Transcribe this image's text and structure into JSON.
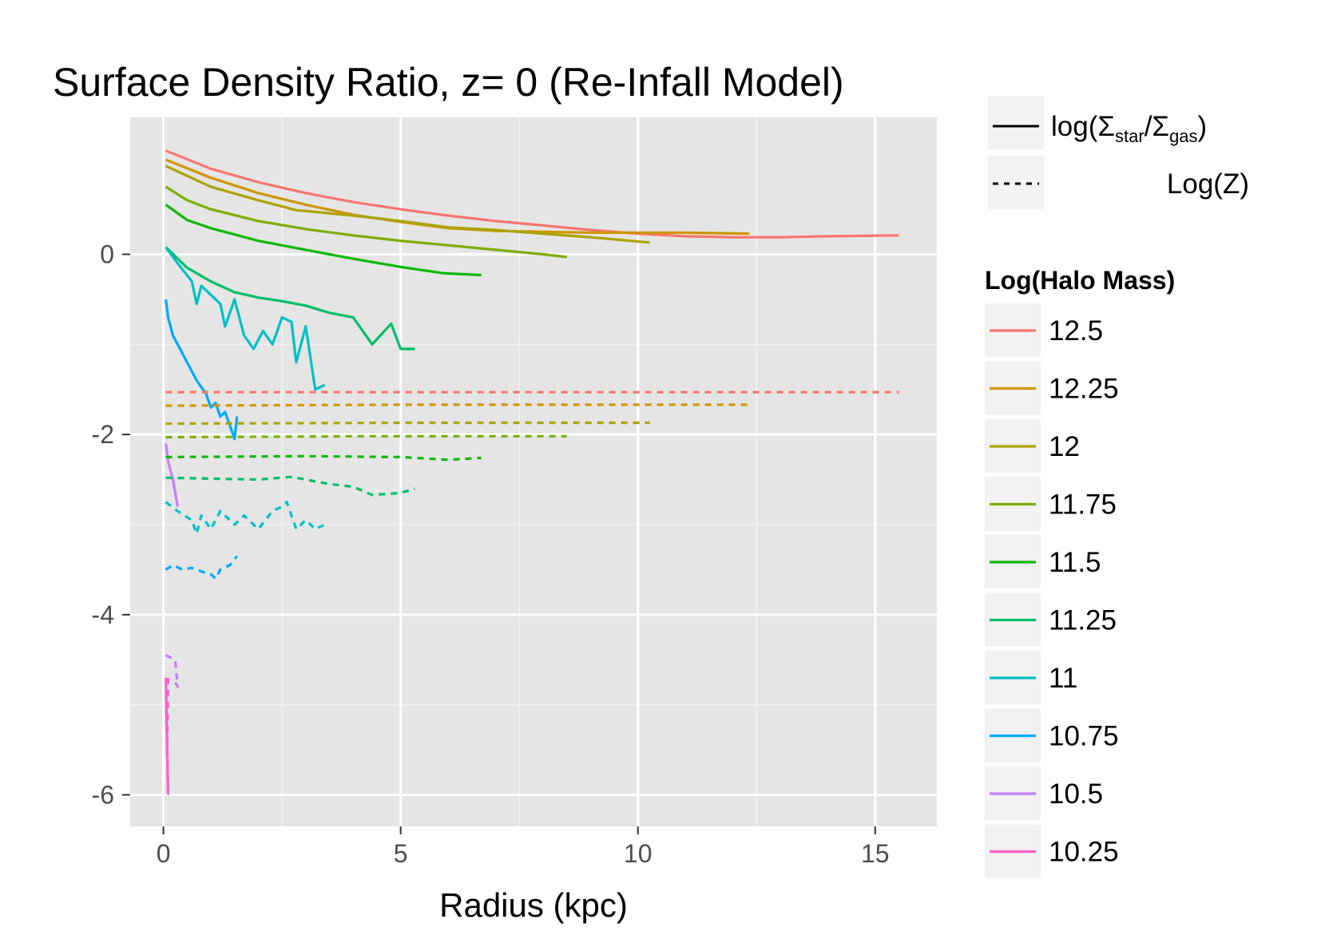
{
  "chart_data": {
    "type": "line",
    "title": "Surface Density Ratio, z= 0 (Re-Infall Model)",
    "xlabel": "Radius (kpc)",
    "ylabel": "",
    "xlim": [
      -0.7,
      16.3
    ],
    "ylim": [
      -6.35,
      1.52
    ],
    "x_ticks": [
      0,
      5,
      10,
      15
    ],
    "x_tick_labels": [
      "0",
      "5",
      "10",
      "15"
    ],
    "y_ticks": [
      0,
      -2,
      -4,
      -6
    ],
    "y_tick_labels": [
      "0",
      "-2",
      "-4",
      "-6"
    ],
    "grid": true,
    "legend_placement": "right",
    "linetype_legend": {
      "solid_prefix": "log(Σ",
      "solid_sub1": "star",
      "solid_mid": "/Σ",
      "solid_sub2": "gas",
      "solid_suffix": ")",
      "dashed_label": "Log(Z)"
    },
    "color_legend": {
      "title": "Log(Halo Mass)",
      "entries": [
        "12.5",
        "12.25",
        "12",
        "11.75",
        "11.5",
        "11.25",
        "11",
        "10.75",
        "10.5",
        "10.25"
      ]
    },
    "series": [
      {
        "name": "12.5",
        "color": "#F8766D",
        "linetype": "solid",
        "x": [
          0.05,
          1,
          2,
          3,
          4,
          5,
          6,
          7,
          8,
          9,
          10,
          11,
          12,
          13,
          14,
          15.5
        ],
        "y": [
          1.15,
          0.95,
          0.8,
          0.68,
          0.58,
          0.5,
          0.43,
          0.37,
          0.32,
          0.27,
          0.23,
          0.2,
          0.19,
          0.19,
          0.2,
          0.21
        ]
      },
      {
        "name": "12.25",
        "color": "#CD9600",
        "linetype": "solid",
        "x": [
          0.05,
          1,
          2,
          3,
          4,
          5,
          6,
          7,
          8,
          9,
          10,
          11,
          12.35
        ],
        "y": [
          1.05,
          0.85,
          0.68,
          0.55,
          0.44,
          0.36,
          0.29,
          0.26,
          0.25,
          0.24,
          0.24,
          0.24,
          0.23
        ]
      },
      {
        "name": "12",
        "color": "#ABA300",
        "linetype": "solid",
        "x": [
          0.05,
          1,
          2,
          2.8,
          4,
          5,
          6,
          7,
          8,
          9,
          10.25
        ],
        "y": [
          0.98,
          0.75,
          0.6,
          0.49,
          0.43,
          0.37,
          0.3,
          0.27,
          0.23,
          0.19,
          0.13
        ]
      },
      {
        "name": "11.75",
        "color": "#7CAE00",
        "linetype": "solid",
        "x": [
          0.05,
          0.5,
          1,
          2,
          3,
          4,
          5,
          6,
          7,
          8,
          8.5
        ],
        "y": [
          0.75,
          0.6,
          0.5,
          0.37,
          0.28,
          0.21,
          0.15,
          0.1,
          0.05,
          0.0,
          -0.03
        ]
      },
      {
        "name": "11.5",
        "color": "#0CB702",
        "linetype": "solid",
        "x": [
          0.05,
          0.5,
          1,
          2,
          3,
          4,
          5,
          5.9,
          6.7
        ],
        "y": [
          0.55,
          0.38,
          0.29,
          0.15,
          0.05,
          -0.05,
          -0.14,
          -0.21,
          -0.23
        ]
      },
      {
        "name": "11.25",
        "color": "#00BE67",
        "linetype": "solid",
        "x": [
          0.05,
          0.5,
          1,
          1.5,
          2,
          2.5,
          3,
          3.5,
          4,
          4.4,
          4.8,
          5,
          5.3
        ],
        "y": [
          0.08,
          -0.15,
          -0.3,
          -0.42,
          -0.48,
          -0.52,
          -0.57,
          -0.65,
          -0.7,
          -1.0,
          -0.77,
          -1.05,
          -1.05
        ]
      },
      {
        "name": "11",
        "color": "#00BFC4",
        "linetype": "solid",
        "x": [
          0.05,
          0.3,
          0.6,
          0.7,
          0.8,
          1.0,
          1.2,
          1.3,
          1.5,
          1.7,
          1.9,
          2.1,
          2.3,
          2.5,
          2.7,
          2.8,
          3.0,
          3.2,
          3.4
        ],
        "y": [
          0.08,
          -0.1,
          -0.3,
          -0.55,
          -0.35,
          -0.45,
          -0.55,
          -0.8,
          -0.5,
          -0.9,
          -1.05,
          -0.85,
          -1.0,
          -0.7,
          -0.75,
          -1.2,
          -0.8,
          -1.5,
          -1.45
        ]
      },
      {
        "name": "10.75",
        "color": "#00A9FF",
        "linetype": "solid",
        "x": [
          0.05,
          0.1,
          0.2,
          0.3,
          0.4,
          0.5,
          0.7,
          0.9,
          1.0,
          1.1,
          1.2,
          1.3,
          1.4,
          1.5,
          1.55
        ],
        "y": [
          -0.5,
          -0.7,
          -0.9,
          -1.0,
          -1.1,
          -1.2,
          -1.4,
          -1.55,
          -1.7,
          -1.65,
          -1.8,
          -1.75,
          -1.9,
          -2.05,
          -1.8
        ]
      },
      {
        "name": "10.5",
        "color": "#C77CFF",
        "linetype": "solid",
        "x": [
          0.05,
          0.1,
          0.2,
          0.3
        ],
        "y": [
          -2.1,
          -2.3,
          -2.5,
          -2.8
        ]
      },
      {
        "name": "10.25",
        "color": "#FF61CC",
        "linetype": "solid",
        "x": [
          0.05,
          0.08,
          0.1
        ],
        "y": [
          -4.7,
          -5.5,
          -6.0
        ]
      },
      {
        "name": "12.5",
        "color": "#F8766D",
        "linetype": "dashed",
        "x": [
          0.05,
          5,
          10,
          15.5
        ],
        "y": [
          -1.53,
          -1.53,
          -1.53,
          -1.53
        ]
      },
      {
        "name": "12.25",
        "color": "#CD9600",
        "linetype": "dashed",
        "x": [
          0.05,
          5,
          10,
          12.35
        ],
        "y": [
          -1.68,
          -1.67,
          -1.67,
          -1.67
        ]
      },
      {
        "name": "12",
        "color": "#ABA300",
        "linetype": "dashed",
        "x": [
          0.05,
          5,
          10.25
        ],
        "y": [
          -1.88,
          -1.87,
          -1.87
        ]
      },
      {
        "name": "11.75",
        "color": "#7CAE00",
        "linetype": "dashed",
        "x": [
          0.05,
          4,
          8.5
        ],
        "y": [
          -2.03,
          -2.02,
          -2.02
        ]
      },
      {
        "name": "11.5",
        "color": "#0CB702",
        "linetype": "dashed",
        "x": [
          0.05,
          3,
          5,
          6,
          6.7
        ],
        "y": [
          -2.25,
          -2.24,
          -2.25,
          -2.28,
          -2.26
        ]
      },
      {
        "name": "11.25",
        "color": "#00BE67",
        "linetype": "dashed",
        "x": [
          0.05,
          2,
          2.7,
          3.5,
          4,
          4.4,
          5,
          5.3
        ],
        "y": [
          -2.48,
          -2.5,
          -2.47,
          -2.55,
          -2.58,
          -2.67,
          -2.65,
          -2.6
        ]
      },
      {
        "name": "11",
        "color": "#00BFC4",
        "linetype": "dashed",
        "x": [
          0.05,
          0.3,
          0.6,
          0.7,
          0.8,
          1.0,
          1.2,
          1.5,
          1.7,
          2.0,
          2.3,
          2.5,
          2.6,
          2.8,
          3.0,
          3.2,
          3.4
        ],
        "y": [
          -2.75,
          -2.85,
          -2.95,
          -3.1,
          -2.9,
          -3.05,
          -2.85,
          -3.0,
          -2.9,
          -3.05,
          -2.85,
          -2.8,
          -2.75,
          -3.05,
          -2.95,
          -3.05,
          -3.0
        ]
      },
      {
        "name": "10.75",
        "color": "#00A9FF",
        "linetype": "dashed",
        "x": [
          0.05,
          0.2,
          0.4,
          0.6,
          0.8,
          1.0,
          1.1,
          1.2,
          1.4,
          1.55
        ],
        "y": [
          -3.5,
          -3.45,
          -3.5,
          -3.48,
          -3.52,
          -3.55,
          -3.6,
          -3.5,
          -3.45,
          -3.35
        ]
      },
      {
        "name": "10.5",
        "color": "#C77CFF",
        "linetype": "dashed",
        "x": [
          0.05,
          0.25,
          0.3,
          0.2
        ],
        "y": [
          -4.45,
          -4.5,
          -4.8,
          -4.7
        ]
      },
      {
        "name": "10.25",
        "color": "#FF61CC",
        "linetype": "dashed",
        "x": [
          0.1,
          0.08,
          0.1
        ],
        "y": [
          -4.7,
          -5.5,
          -6.0
        ]
      }
    ]
  }
}
